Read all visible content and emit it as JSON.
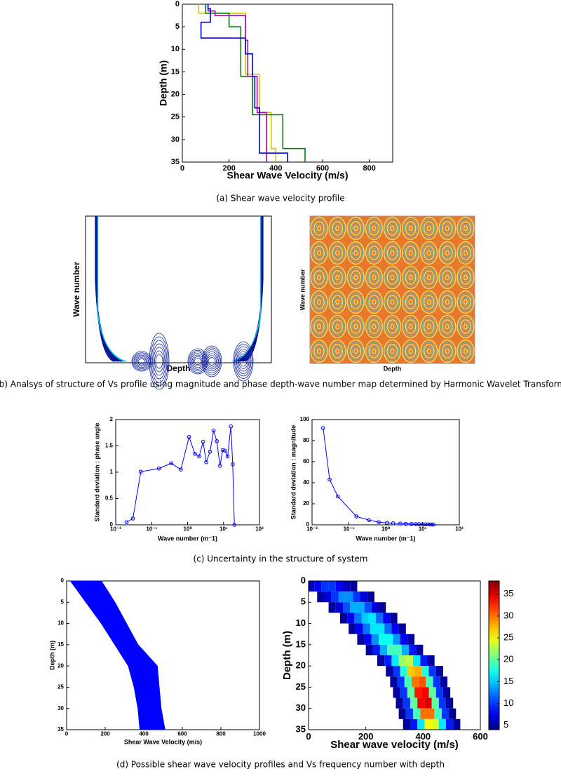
{
  "chart_data": [
    {
      "type": "step",
      "xlabel": "Shear Wave Velocity (m/s)",
      "ylabel": "Depth (m)",
      "xlim": [
        0,
        900
      ],
      "xticks": [
        0,
        200,
        400,
        600,
        800
      ],
      "ylim": [
        0,
        35
      ],
      "yticks": [
        0,
        5,
        10,
        15,
        20,
        25,
        30,
        35
      ],
      "y_inverted": true,
      "series": [
        {
          "color": "#c8c800",
          "x": [
            70,
            70,
            270,
            270,
            330,
            330,
            380,
            380,
            400,
            400
          ],
          "values": [
            0,
            2,
            2,
            15.5,
            15.5,
            24,
            24,
            32,
            32,
            35
          ]
        },
        {
          "color": "#008000",
          "x": [
            100,
            100,
            200,
            200,
            250,
            250,
            300,
            300,
            430,
            430,
            525,
            525
          ],
          "values": [
            0,
            2,
            2,
            5,
            5,
            16,
            16,
            24.5,
            24.5,
            32,
            32,
            35
          ]
        },
        {
          "color": "#b000b0",
          "x": [
            110,
            110,
            140,
            140,
            270,
            270,
            280,
            280,
            320,
            320,
            360,
            360
          ],
          "values": [
            0,
            1.5,
            1.5,
            2.5,
            2.5,
            8,
            8,
            16,
            16,
            24,
            24,
            35
          ]
        },
        {
          "color": "#0000e0",
          "x": [
            110,
            110,
            120,
            120,
            80,
            80,
            270,
            270,
            300,
            300,
            310,
            310,
            330,
            330,
            450,
            450
          ],
          "values": [
            0,
            1,
            1,
            4,
            4,
            7.5,
            7.5,
            11,
            11,
            16,
            16,
            23,
            23,
            33,
            33,
            35
          ]
        }
      ]
    },
    {
      "type": "image",
      "variant": "magnitude",
      "xlabel": "Depth",
      "ylabel": "Wave number"
    },
    {
      "type": "image",
      "variant": "phase",
      "xlabel": "Depth",
      "ylabel": "Wave number"
    },
    {
      "type": "line",
      "xscale": "log",
      "xlabel": "Wave number (m⁻1)",
      "ylabel": "Standard deviation : phase angle",
      "color": "#0000ff",
      "xlim": [
        0.01,
        100
      ],
      "xticks": [
        {
          "value": 0.01,
          "label": "10⁻²"
        },
        {
          "value": 0.1,
          "label": "10⁻¹"
        },
        {
          "value": 1,
          "label": "10⁰"
        },
        {
          "value": 10,
          "label": "10¹"
        },
        {
          "value": 100,
          "label": "10²"
        }
      ],
      "ylim": [
        0,
        2
      ],
      "yticks": [
        0,
        0.5,
        1,
        1.5,
        2
      ],
      "x": [
        0.02,
        0.03,
        0.05,
        0.16,
        0.35,
        0.65,
        1.1,
        1.6,
        2.1,
        2.7,
        3.3,
        4.2,
        5.3,
        6.5,
        8,
        9.5,
        11,
        13,
        16,
        18,
        20
      ],
      "values": [
        0.05,
        0.12,
        1.01,
        1.07,
        1.17,
        1.05,
        1.67,
        1.35,
        1.3,
        1.58,
        1.19,
        1.39,
        1.79,
        1.59,
        1.12,
        1.42,
        1.41,
        1.3,
        1.87,
        1.15,
        0
      ]
    },
    {
      "type": "line",
      "xscale": "log",
      "xlabel": "Wave number (m⁻1)",
      "ylabel": "Standard deviation : magnitude",
      "color": "#0000ff",
      "xlim": [
        0.01,
        100
      ],
      "xticks": [
        {
          "value": 0.01,
          "label": "10⁻²"
        },
        {
          "value": 0.1,
          "label": "10⁻¹"
        },
        {
          "value": 1,
          "label": "10⁰"
        },
        {
          "value": 10,
          "label": "10¹"
        },
        {
          "value": 100,
          "label": "10²"
        }
      ],
      "ylim": [
        0,
        100
      ],
      "yticks": [
        0,
        20,
        40,
        60,
        80,
        100
      ],
      "x": [
        0.02,
        0.03,
        0.05,
        0.16,
        0.35,
        0.65,
        1.1,
        1.6,
        2.5,
        3.5,
        5,
        6.5,
        8,
        10,
        12,
        14,
        16,
        18,
        20
      ],
      "values": [
        92,
        43,
        27,
        8,
        4.5,
        2.5,
        1.8,
        1.5,
        1.2,
        1,
        0.8,
        0.7,
        0.6,
        0.5,
        0.5,
        0.4,
        0.4,
        0.3,
        0.3
      ]
    },
    {
      "type": "band",
      "xlabel": "Shear Wave Velocity (m/s)",
      "ylabel": "Depth (m)",
      "color": "#0000ff",
      "xlim": [
        0,
        1000
      ],
      "xticks": [
        0,
        200,
        400,
        600,
        800,
        1000
      ],
      "ylim": [
        0,
        35
      ],
      "yticks": [
        0,
        5,
        10,
        15,
        20,
        25,
        30,
        35
      ],
      "y_inverted": true,
      "depth": [
        0,
        5,
        10,
        15,
        20,
        25,
        30,
        35
      ],
      "lower": [
        20,
        100,
        180,
        250,
        320,
        350,
        370,
        380
      ],
      "upper": [
        180,
        250,
        310,
        370,
        470,
        480,
        490,
        510
      ]
    },
    {
      "type": "heatmap",
      "xlabel": "Shear wave velocity (m/s)",
      "ylabel": "Depth (m)",
      "colormap": "jet",
      "xlim": [
        0,
        600
      ],
      "xticks": [
        0,
        200,
        400,
        600
      ],
      "ylim": [
        0,
        35
      ],
      "yticks": [
        0,
        5,
        10,
        15,
        20,
        25,
        30,
        35
      ],
      "y_inverted": true,
      "ybins": [
        0,
        2.5,
        5,
        7.5,
        10,
        12.5,
        15,
        17.5,
        20,
        22.5,
        25,
        27.5,
        30,
        32.5,
        35
      ],
      "xbin_width": 25,
      "rows": [
        {
          "x0": -30,
          "counts": [
            5,
            6,
            8,
            10,
            10,
            8,
            6,
            5
          ]
        },
        {
          "x0": 30,
          "counts": [
            5,
            7,
            10,
            13,
            13,
            10,
            7,
            5
          ]
        },
        {
          "x0": 70,
          "counts": [
            5,
            7,
            11,
            14,
            14,
            11,
            7,
            5
          ]
        },
        {
          "x0": 110,
          "counts": [
            5,
            8,
            12,
            15,
            16,
            12,
            8,
            5
          ]
        },
        {
          "x0": 140,
          "counts": [
            5,
            8,
            12,
            16,
            16,
            12,
            8,
            5
          ]
        },
        {
          "x0": 170,
          "counts": [
            5,
            8,
            13,
            17,
            17,
            13,
            8,
            5
          ]
        },
        {
          "x0": 200,
          "counts": [
            5,
            9,
            14,
            19,
            19,
            14,
            9,
            5
          ]
        },
        {
          "x0": 240,
          "counts": [
            5,
            9,
            16,
            22,
            23,
            16,
            9,
            5
          ]
        },
        {
          "x0": 270,
          "counts": [
            5,
            10,
            18,
            27,
            28,
            18,
            10,
            5
          ]
        },
        {
          "x0": 285,
          "counts": [
            5,
            10,
            19,
            30,
            31,
            19,
            10,
            5
          ]
        },
        {
          "x0": 295,
          "counts": [
            5,
            10,
            20,
            33,
            34,
            20,
            10,
            5
          ]
        },
        {
          "x0": 305,
          "counts": [
            5,
            10,
            20,
            34,
            35,
            20,
            10,
            5
          ]
        },
        {
          "x0": 315,
          "counts": [
            5,
            10,
            19,
            30,
            30,
            19,
            10,
            5
          ]
        },
        {
          "x0": 330,
          "counts": [
            5,
            9,
            16,
            25,
            24,
            16,
            9,
            5
          ]
        }
      ],
      "clim": [
        4,
        38
      ],
      "cticks": [
        5,
        10,
        15,
        20,
        25,
        30,
        35
      ]
    }
  ],
  "captions": [
    "(a) Shear wave velocity profile",
    "(b) Analsys of structure of Vs profile using magnitude and phase depth-wave number map determined by Harmonic Wavelet Transform",
    "(c) Uncertainty in the structure of system",
    "(d) Possible shear wave velocity profiles and Vs frequency number with depth"
  ]
}
